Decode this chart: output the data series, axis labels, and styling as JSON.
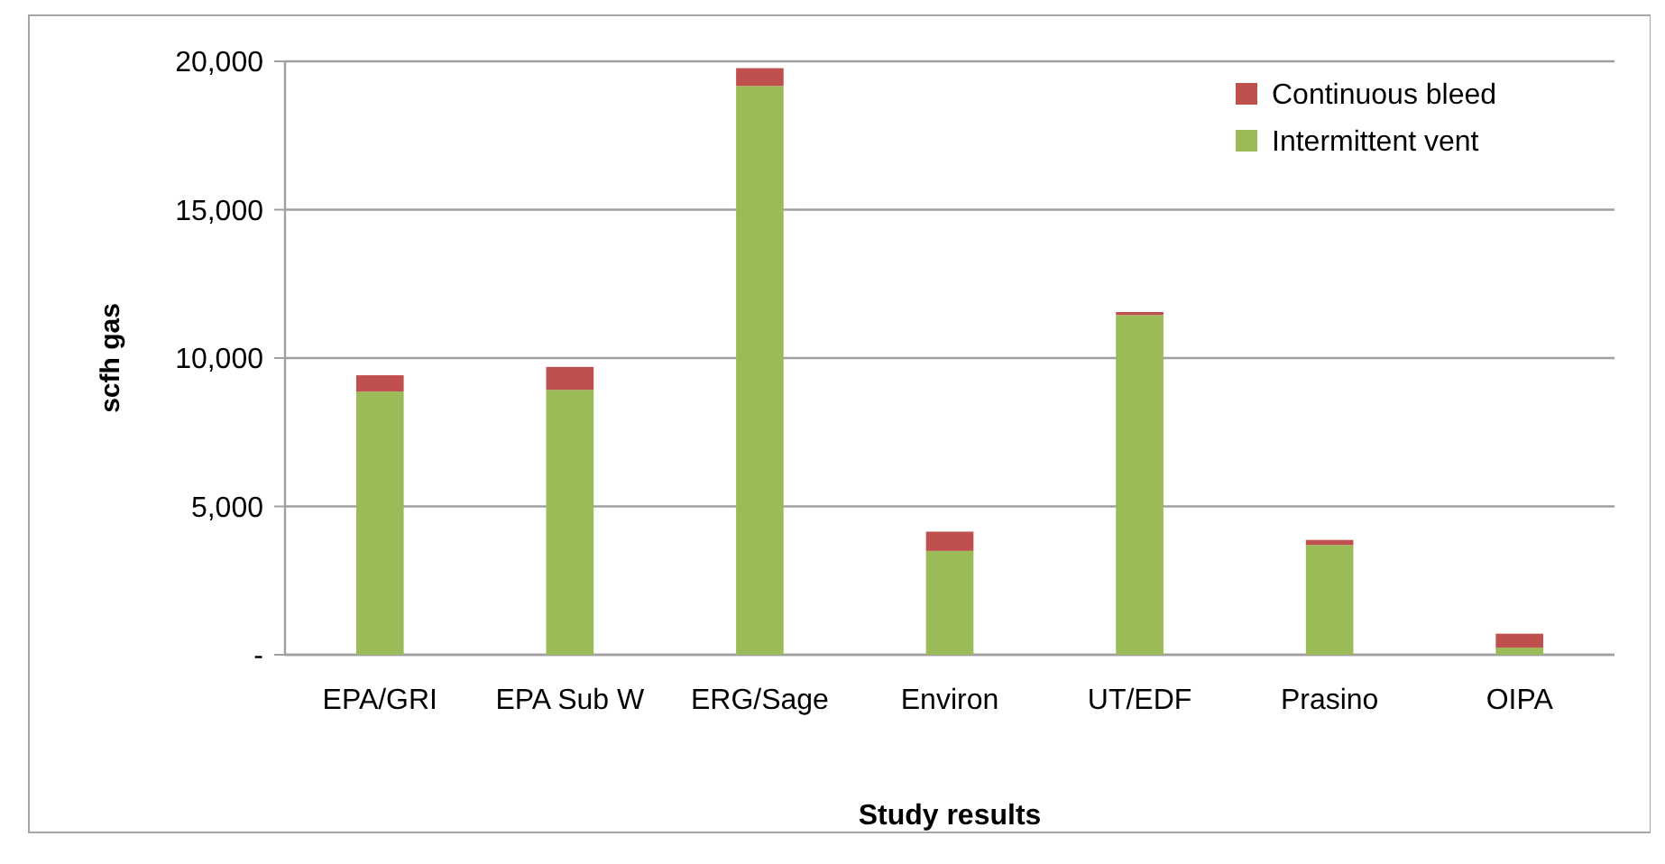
{
  "chart_data": {
    "type": "bar",
    "stacked": true,
    "xlabel": "Study results",
    "ylabel": "scfh gas",
    "categories": [
      "EPA/GRI",
      "EPA Sub W",
      "ERG/Sage",
      "Environ",
      "UT/EDF",
      "Prasino",
      "OIPA"
    ],
    "series": [
      {
        "name": "Intermittent vent",
        "color": "#9bbb59",
        "values": [
          8870,
          8930,
          19170,
          3500,
          11450,
          3700,
          240
        ]
      },
      {
        "name": "Continuous bleed",
        "color": "#c0504d",
        "values": [
          550,
          770,
          600,
          650,
          100,
          170,
          470
        ]
      }
    ],
    "ylim": [
      0,
      20000
    ],
    "yticks": [
      {
        "value": 0,
        "label": "-"
      },
      {
        "value": 5000,
        "label": "5,000"
      },
      {
        "value": 10000,
        "label": "10,000"
      },
      {
        "value": 15000,
        "label": "15,000"
      },
      {
        "value": 20000,
        "label": "20,000"
      }
    ],
    "grid": "y",
    "legend": "top right"
  }
}
